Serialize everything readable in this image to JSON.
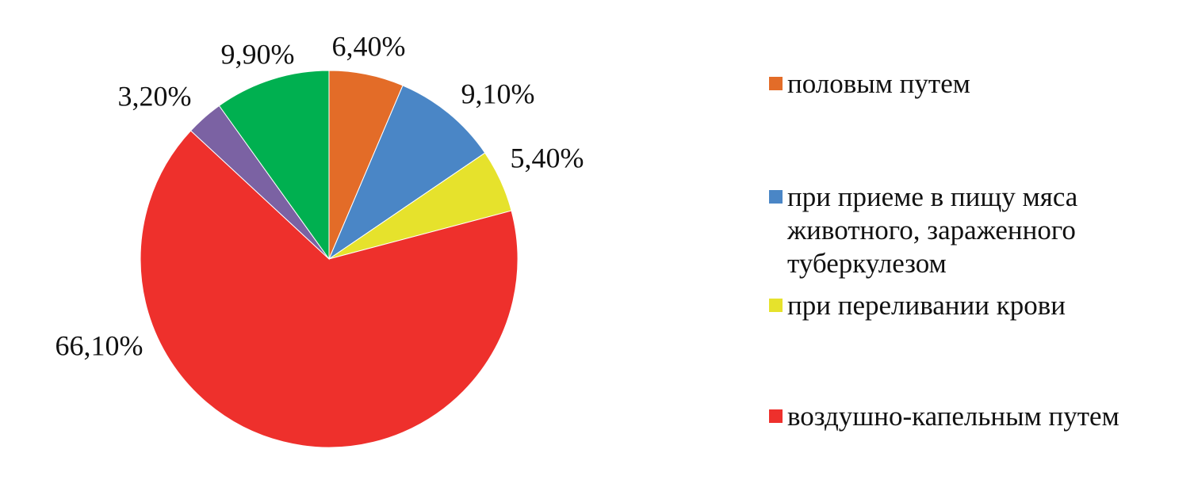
{
  "chart_data": {
    "type": "pie",
    "categories": [
      "половым путем",
      "при приеме в пищу мяса животного, зараженного туберкулезом",
      "при переливании крови",
      "воздушно-капельным путем",
      null,
      null
    ],
    "values": [
      6.4,
      9.1,
      5.4,
      66.1,
      3.2,
      9.9
    ],
    "value_labels": [
      "6,40%",
      "9,10%",
      "5,40%",
      "66,10%",
      "3,20%",
      "9,90%"
    ],
    "colors": [
      "#e36c28",
      "#4a86c6",
      "#e6e22c",
      "#ee302c",
      "#7b62a3",
      "#00b050"
    ]
  }
}
